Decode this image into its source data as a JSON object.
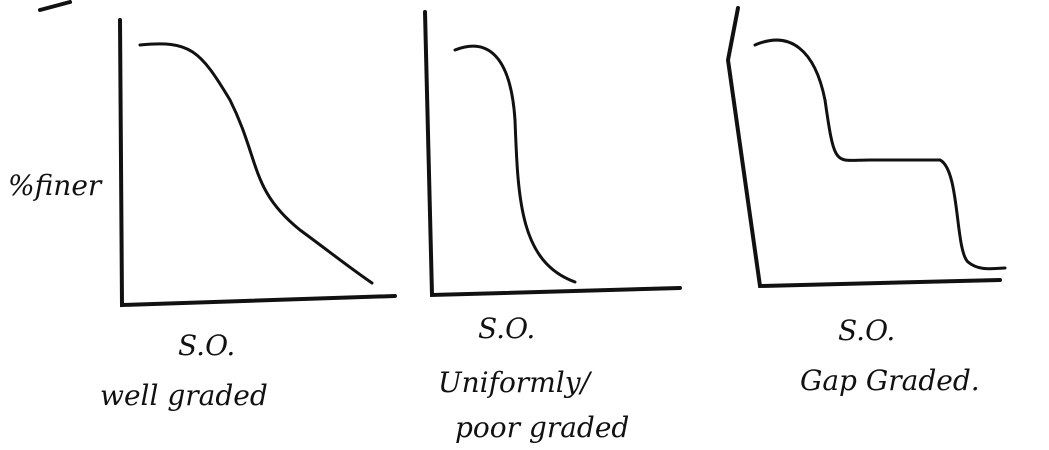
{
  "y_axis_label": "%finer",
  "panels": [
    {
      "x_label": "S.O.",
      "caption_lines": [
        "well graded"
      ]
    },
    {
      "x_label": "S.O.",
      "caption_lines": [
        "Uniformly/",
        "poor graded"
      ]
    },
    {
      "x_label": "S.O.",
      "caption_lines": [
        "Gap Graded."
      ]
    }
  ]
}
